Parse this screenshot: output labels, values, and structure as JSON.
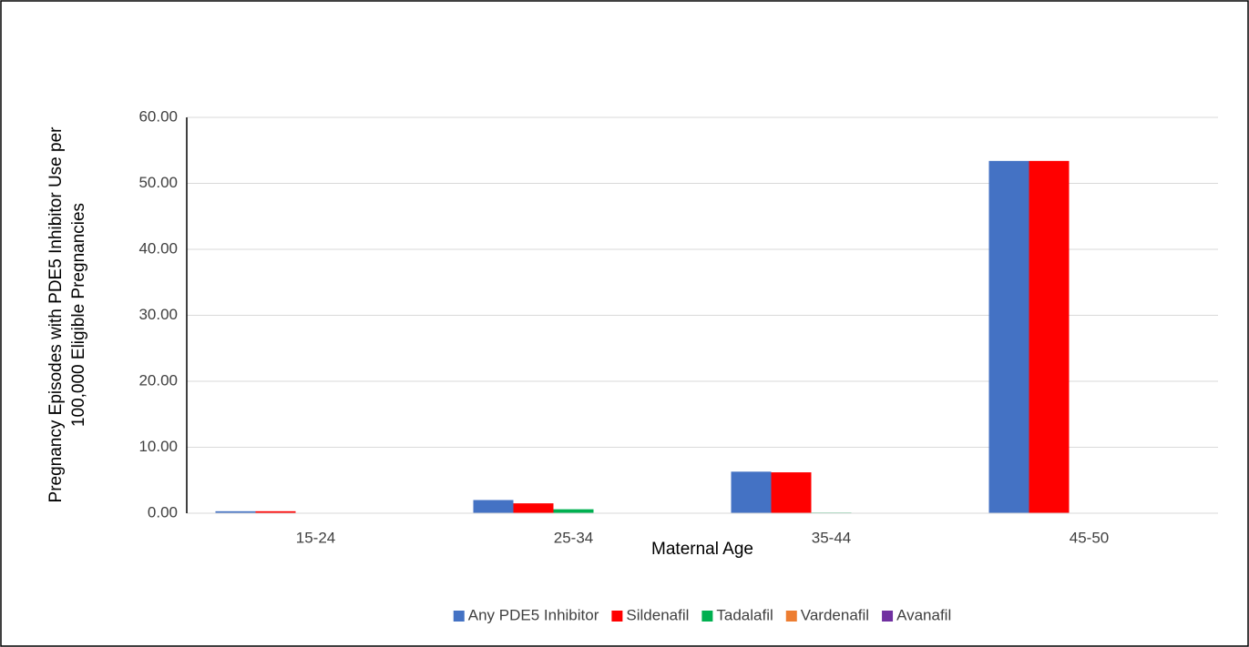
{
  "chart_data": {
    "type": "bar",
    "x_label": "Maternal Age",
    "y_label": [
      "Pregnancy  Episodes with PDE5 Inhibitor Use per",
      "100,000 Eligible Pregnancies"
    ],
    "categories": [
      "15-24",
      "25-34",
      "35-44",
      "45-50"
    ],
    "series": [
      {
        "name": "Any PDE5 Inhibitor",
        "color": "#4472c4",
        "values": [
          0.3,
          2.0,
          6.3,
          53.4
        ]
      },
      {
        "name": "Sildenafil",
        "color": "#ff0000",
        "values": [
          0.3,
          1.5,
          6.2,
          53.4
        ]
      },
      {
        "name": "Tadalafil",
        "color": "#00b050",
        "values": [
          0,
          0.6,
          0.1,
          0
        ]
      },
      {
        "name": "Vardenafil",
        "color": "#ed7d31",
        "values": [
          0,
          0,
          0,
          0
        ]
      },
      {
        "name": "Avanafil",
        "color": "#7030a0",
        "values": [
          0,
          0,
          0,
          0
        ]
      }
    ],
    "ylim": [
      0,
      60
    ],
    "yticks": [
      {
        "value": 0,
        "label": "0.00"
      },
      {
        "value": 10,
        "label": "10.00"
      },
      {
        "value": 20,
        "label": "20.00"
      },
      {
        "value": 30,
        "label": "30.00"
      },
      {
        "value": 40,
        "label": "40.00"
      },
      {
        "value": 50,
        "label": "50.00"
      },
      {
        "value": 60,
        "label": "60.00"
      }
    ],
    "grid": true,
    "legend": "bottom"
  }
}
